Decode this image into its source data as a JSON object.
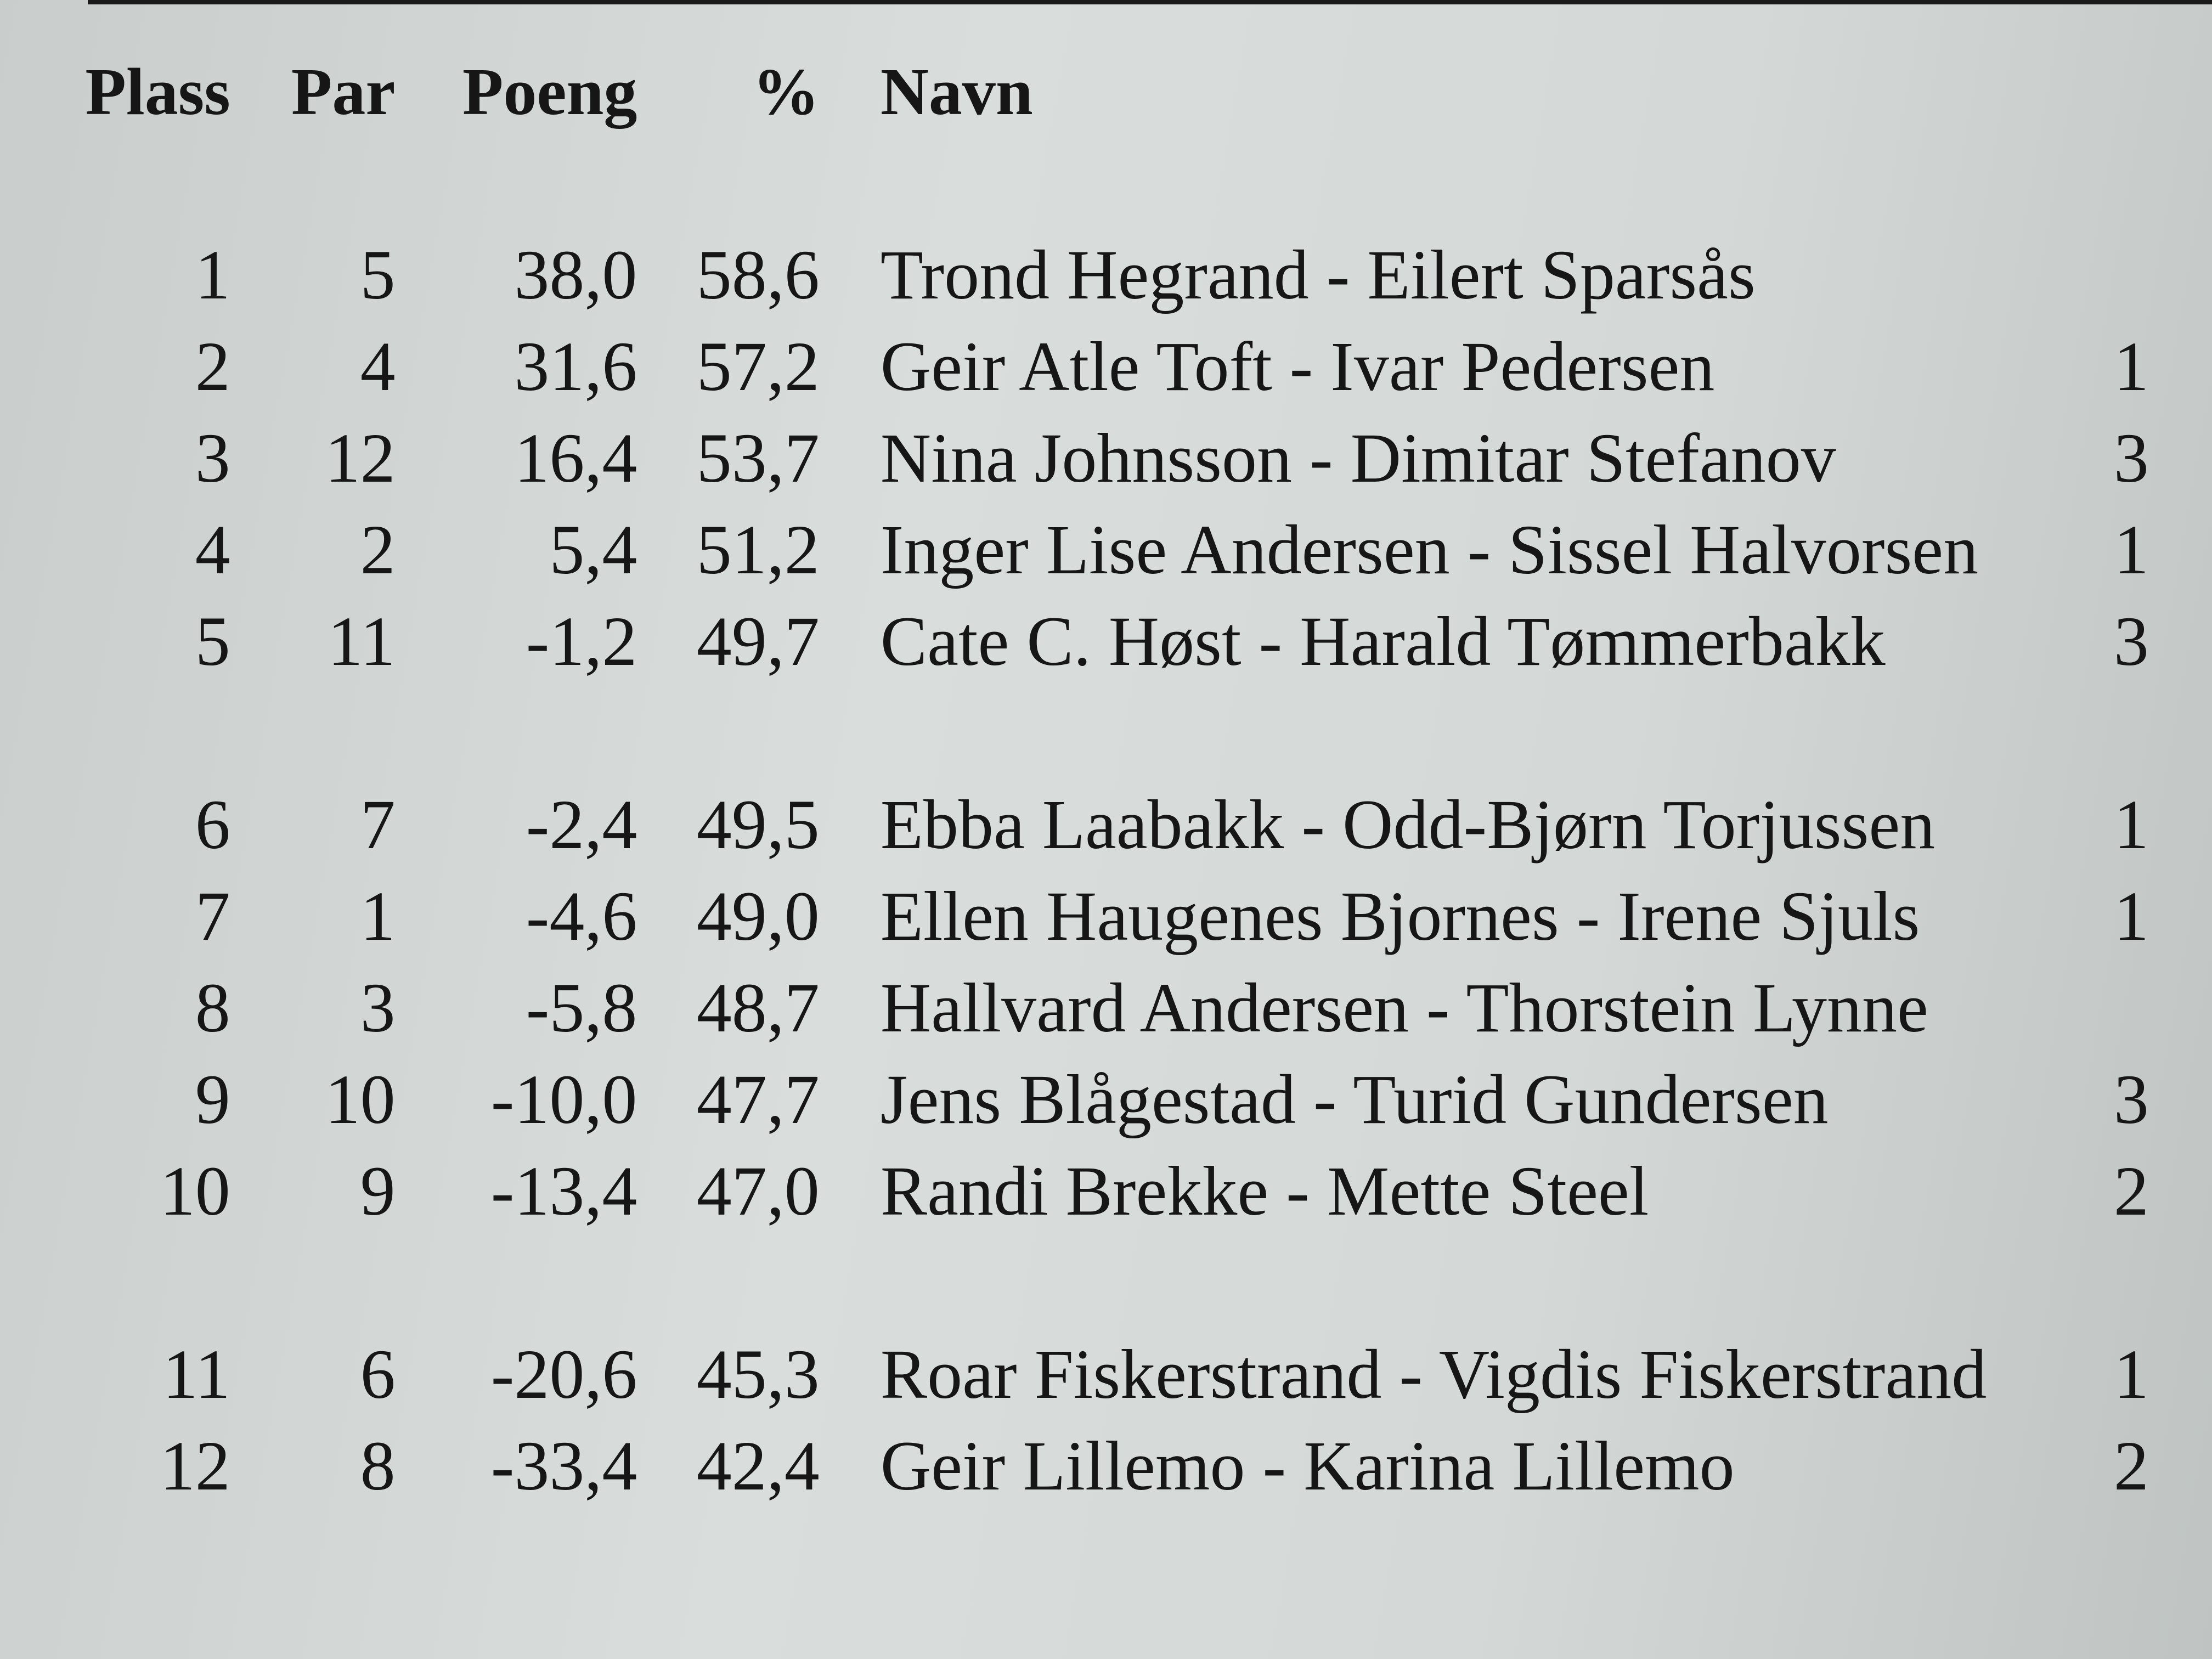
{
  "headers": {
    "plass": "Plass",
    "par": "Par",
    "poeng": "Poeng",
    "pct": "%",
    "navn": "Navn"
  },
  "groups": [
    [
      {
        "plass": "1",
        "par": "5",
        "poeng": "38,0",
        "pct": "58,6",
        "navn": "Trond Hegrand - Eilert Sparsås",
        "extra": ""
      },
      {
        "plass": "2",
        "par": "4",
        "poeng": "31,6",
        "pct": "57,2",
        "navn": "Geir Atle Toft - Ivar Pedersen",
        "extra": "1"
      },
      {
        "plass": "3",
        "par": "12",
        "poeng": "16,4",
        "pct": "53,7",
        "navn": "Nina Johnsson - Dimitar Stefanov",
        "extra": "3"
      },
      {
        "plass": "4",
        "par": "2",
        "poeng": "5,4",
        "pct": "51,2",
        "navn": "Inger Lise Andersen - Sissel Halvorsen",
        "extra": "1"
      },
      {
        "plass": "5",
        "par": "11",
        "poeng": "-1,2",
        "pct": "49,7",
        "navn": "Cate C. Høst - Harald Tømmerbakk",
        "extra": "3"
      }
    ],
    [
      {
        "plass": "6",
        "par": "7",
        "poeng": "-2,4",
        "pct": "49,5",
        "navn": "Ebba Laabakk - Odd-Bjørn Torjussen",
        "extra": "1"
      },
      {
        "plass": "7",
        "par": "1",
        "poeng": "-4,6",
        "pct": "49,0",
        "navn": "Ellen Haugenes Bjornes - Irene Sjuls",
        "extra": "1"
      },
      {
        "plass": "8",
        "par": "3",
        "poeng": "-5,8",
        "pct": "48,7",
        "navn": "Hallvard Andersen - Thorstein Lynne",
        "extra": ""
      },
      {
        "plass": "9",
        "par": "10",
        "poeng": "-10,0",
        "pct": "47,7",
        "navn": "Jens Blågestad - Turid Gundersen",
        "extra": "3"
      },
      {
        "plass": "10",
        "par": "9",
        "poeng": "-13,4",
        "pct": "47,0",
        "navn": "Randi Brekke - Mette Steel",
        "extra": "2"
      }
    ],
    [
      {
        "plass": "11",
        "par": "6",
        "poeng": "-20,6",
        "pct": "45,3",
        "navn": "Roar Fiskerstrand - Vigdis Fiskerstrand",
        "extra": "1"
      },
      {
        "plass": "12",
        "par": "8",
        "poeng": "-33,4",
        "pct": "42,4",
        "navn": "Geir Lillemo - Karina Lillemo",
        "extra": "2"
      }
    ]
  ]
}
